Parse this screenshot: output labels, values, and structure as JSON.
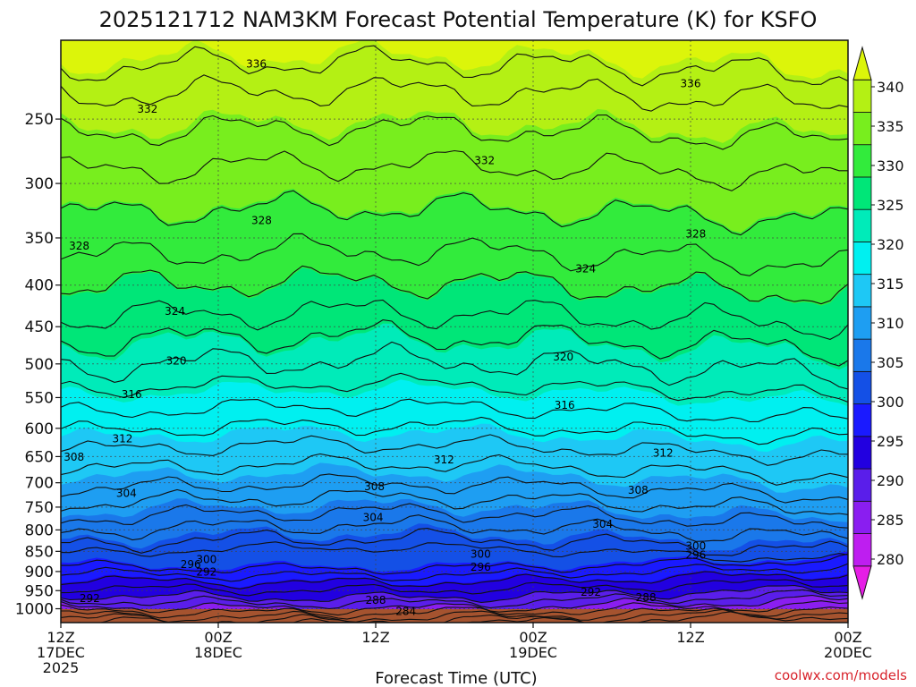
{
  "chart_data": {
    "type": "heatmap",
    "title": "2025121712 NAM3KM Forecast Potential Temperature (K) for KSFO",
    "xlabel": "Forecast Time (UTC)",
    "ylabel": "",
    "credit": "coolwx.com/models",
    "x_ticks": [
      {
        "hour": 0,
        "lines": [
          "12Z",
          "17DEC",
          "2025"
        ]
      },
      {
        "hour": 12,
        "lines": [
          "00Z",
          "18DEC"
        ]
      },
      {
        "hour": 24,
        "lines": [
          "12Z"
        ]
      },
      {
        "hour": 36,
        "lines": [
          "00Z",
          "19DEC"
        ]
      },
      {
        "hour": 48,
        "lines": [
          "12Z"
        ]
      },
      {
        "hour": 60,
        "lines": [
          "00Z",
          "20DEC"
        ]
      }
    ],
    "xlim": [
      0,
      60
    ],
    "y_ticks": [
      250,
      300,
      350,
      400,
      450,
      500,
      550,
      600,
      650,
      700,
      750,
      800,
      850,
      900,
      950,
      1000
    ],
    "ylim": [
      1040,
      200
    ],
    "y_scale": "log-pressure (reversed)",
    "grid": true,
    "colorbar": {
      "ticks": [
        280,
        285,
        290,
        295,
        300,
        305,
        310,
        315,
        320,
        325,
        330,
        335,
        340
      ],
      "range": [
        275,
        345
      ],
      "colors": [
        "#e61ee6",
        "#be1ef0",
        "#8a1ef0",
        "#5a1eea",
        "#2200e0",
        "#1a1aff",
        "#1450e6",
        "#1a78ea",
        "#1e9ef2",
        "#1ec8f5",
        "#00f0f0",
        "#00ebb9",
        "#00e678",
        "#32eb3c",
        "#78ee1e",
        "#b4f014",
        "#dcf50a"
      ]
    },
    "contour_labels": [
      {
        "hour": 14.9,
        "level": 214,
        "text": "336"
      },
      {
        "hour": 48.0,
        "level": 226,
        "text": "336"
      },
      {
        "hour": 6.6,
        "level": 243,
        "text": "332"
      },
      {
        "hour": 32.3,
        "level": 281,
        "text": "332"
      },
      {
        "hour": 15.3,
        "level": 333,
        "text": "328"
      },
      {
        "hour": 48.4,
        "level": 346,
        "text": "328"
      },
      {
        "hour": 1.4,
        "level": 358,
        "text": "328"
      },
      {
        "hour": 8.7,
        "level": 431,
        "text": "324"
      },
      {
        "hour": 40.0,
        "level": 382,
        "text": "324"
      },
      {
        "hour": 8.8,
        "level": 496,
        "text": "320"
      },
      {
        "hour": 38.3,
        "level": 490,
        "text": "320"
      },
      {
        "hour": 5.4,
        "level": 545,
        "text": "316"
      },
      {
        "hour": 38.4,
        "level": 562,
        "text": "316"
      },
      {
        "hour": 4.7,
        "level": 618,
        "text": "312"
      },
      {
        "hour": 29.2,
        "level": 656,
        "text": "312"
      },
      {
        "hour": 45.9,
        "level": 644,
        "text": "312"
      },
      {
        "hour": 1.0,
        "level": 651,
        "text": "308"
      },
      {
        "hour": 23.9,
        "level": 708,
        "text": "308"
      },
      {
        "hour": 44.0,
        "level": 715,
        "text": "308"
      },
      {
        "hour": 5.0,
        "level": 721,
        "text": "304"
      },
      {
        "hour": 23.8,
        "level": 772,
        "text": "304"
      },
      {
        "hour": 41.3,
        "level": 787,
        "text": "304"
      },
      {
        "hour": 11.1,
        "level": 870,
        "text": "300"
      },
      {
        "hour": 32.0,
        "level": 857,
        "text": "300"
      },
      {
        "hour": 48.4,
        "level": 838,
        "text": "300"
      },
      {
        "hour": 9.9,
        "level": 882,
        "text": "296"
      },
      {
        "hour": 32.0,
        "level": 889,
        "text": "296"
      },
      {
        "hour": 48.4,
        "level": 859,
        "text": "296"
      },
      {
        "hour": 11.1,
        "level": 901,
        "text": "292"
      },
      {
        "hour": 2.2,
        "level": 971,
        "text": "292"
      },
      {
        "hour": 40.4,
        "level": 954,
        "text": "292"
      },
      {
        "hour": 24.0,
        "level": 976,
        "text": "288"
      },
      {
        "hour": 44.6,
        "level": 969,
        "text": "288"
      },
      {
        "hour": 26.3,
        "level": 1007,
        "text": "284"
      }
    ]
  }
}
